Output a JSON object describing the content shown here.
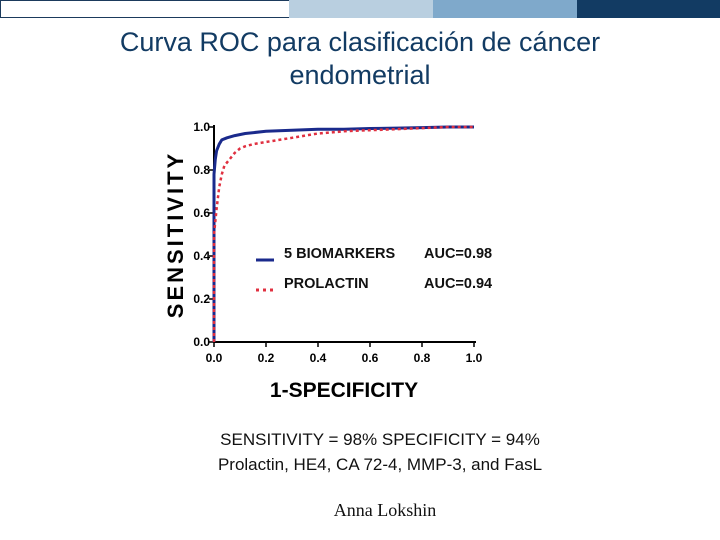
{
  "header_bar": {
    "colors": [
      "#ffffff",
      "#b9cfe0",
      "#7fa9cb",
      "#123b63"
    ]
  },
  "title": {
    "line1": "Curva ROC para clasificación de cáncer",
    "line2": "endometrial"
  },
  "chart_data": {
    "type": "line",
    "xlabel": "1-SPECIFICITY",
    "ylabel": "SENSITIVITY",
    "xlim": [
      0,
      1
    ],
    "ylim": [
      0,
      1
    ],
    "x_ticks": [
      "0.0",
      "0.2",
      "0.4",
      "0.6",
      "0.8",
      "1.0"
    ],
    "y_ticks": [
      "0.0",
      "0.2",
      "0.4",
      "0.6",
      "0.8",
      "1.0"
    ],
    "grid": false,
    "legend_position": "lower-center",
    "series": [
      {
        "name": "5 BIOMARKERS",
        "auc_label": "AUC=0.98",
        "color": "#1a2a8c",
        "style": "solid",
        "x": [
          0.0,
          0.0,
          0.005,
          0.01,
          0.02,
          0.03,
          0.05,
          0.08,
          0.12,
          0.2,
          0.3,
          0.4,
          0.5,
          0.6,
          0.7,
          0.8,
          0.9,
          1.0
        ],
        "y": [
          0.0,
          0.78,
          0.85,
          0.89,
          0.92,
          0.94,
          0.95,
          0.96,
          0.97,
          0.98,
          0.985,
          0.99,
          0.99,
          0.993,
          0.995,
          0.997,
          1.0,
          1.0
        ]
      },
      {
        "name": "PROLACTIN",
        "auc_label": "AUC=0.94",
        "color": "#e03040",
        "style": "dotted",
        "x": [
          0.0,
          0.0,
          0.01,
          0.02,
          0.03,
          0.04,
          0.06,
          0.08,
          0.1,
          0.12,
          0.15,
          0.2,
          0.25,
          0.3,
          0.35,
          0.4,
          0.5,
          0.6,
          0.7,
          0.8,
          0.9,
          1.0
        ],
        "y": [
          0.0,
          0.5,
          0.62,
          0.72,
          0.78,
          0.82,
          0.85,
          0.88,
          0.9,
          0.91,
          0.92,
          0.93,
          0.94,
          0.95,
          0.96,
          0.97,
          0.98,
          0.985,
          0.99,
          0.995,
          1.0,
          1.0
        ]
      }
    ]
  },
  "notes": {
    "line1": "SENSITIVITY = 98% SPECIFICITY = 94%",
    "line2": "Prolactin, HE4, CA 72-4, MMP-3, and FasL"
  },
  "author": "Anna Lokshin"
}
